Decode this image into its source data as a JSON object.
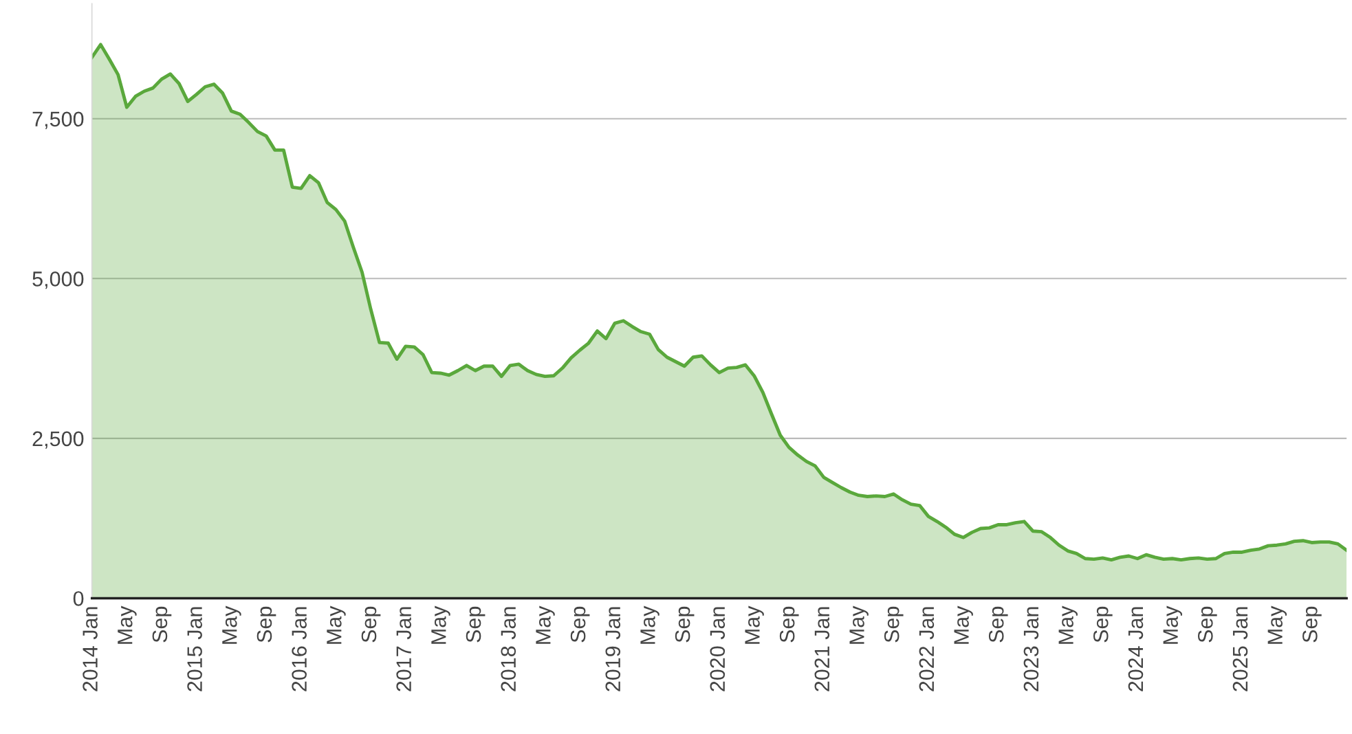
{
  "chart_data": {
    "type": "area",
    "categories": [
      "2014 Jan",
      null,
      null,
      null,
      "May",
      null,
      null,
      null,
      "Sep",
      null,
      null,
      null,
      "2015 Jan",
      null,
      null,
      null,
      "May",
      null,
      null,
      null,
      "Sep",
      null,
      null,
      null,
      "2016 Jan",
      null,
      null,
      null,
      "May",
      null,
      null,
      null,
      "Sep",
      null,
      null,
      null,
      "2017 Jan",
      null,
      null,
      null,
      "May",
      null,
      null,
      null,
      "Sep",
      null,
      null,
      null,
      "2018 Jan",
      null,
      null,
      null,
      "May",
      null,
      null,
      null,
      "Sep",
      null,
      null,
      null,
      "2019 Jan",
      null,
      null,
      null,
      "May",
      null,
      null,
      null,
      "Sep",
      null,
      null,
      null,
      "2020 Jan",
      null,
      null,
      null,
      "May",
      null,
      null,
      null,
      "Sep",
      null,
      null,
      null,
      "2021 Jan",
      null,
      null,
      null,
      "May",
      null,
      null,
      null,
      "Sep",
      null,
      null,
      null,
      "2022 Jan",
      null,
      null,
      null,
      "May",
      null,
      null,
      null,
      "Sep",
      null,
      null,
      null,
      "2023 Jan",
      null,
      null,
      null,
      "May",
      null,
      null,
      null,
      "Sep",
      null,
      null,
      null,
      "2024 Jan",
      null,
      null,
      null,
      "May",
      null,
      null,
      null,
      "Sep",
      null,
      null,
      null,
      "2025 Jan",
      null,
      null,
      null,
      "May",
      null,
      null,
      null,
      "Sep",
      null,
      null,
      null,
      null
    ],
    "series": [
      {
        "color": "#5aa83c",
        "values": [
          8460,
          8660,
          8430,
          8190,
          7680,
          7850,
          7930,
          7980,
          8120,
          8200,
          8050,
          7770,
          7880,
          8000,
          8040,
          7900,
          7620,
          7570,
          7440,
          7300,
          7230,
          7010,
          7010,
          6430,
          6410,
          6610,
          6500,
          6190,
          6080,
          5900,
          5490,
          5100,
          4520,
          4000,
          3990,
          3740,
          3940,
          3930,
          3810,
          3530,
          3520,
          3490,
          3560,
          3640,
          3560,
          3630,
          3630,
          3470,
          3640,
          3660,
          3560,
          3500,
          3470,
          3480,
          3600,
          3760,
          3880,
          3990,
          4180,
          4060,
          4300,
          4340,
          4250,
          4170,
          4130,
          3890,
          3770,
          3700,
          3630,
          3770,
          3790,
          3650,
          3530,
          3600,
          3610,
          3650,
          3480,
          3220,
          2880,
          2550,
          2360,
          2240,
          2140,
          2070,
          1890,
          1810,
          1730,
          1660,
          1610,
          1590,
          1600,
          1590,
          1630,
          1540,
          1470,
          1450,
          1280,
          1200,
          1110,
          1000,
          950,
          1030,
          1090,
          1100,
          1150,
          1150,
          1180,
          1200,
          1050,
          1040,
          950,
          830,
          740,
          700,
          620,
          610,
          630,
          600,
          640,
          660,
          620,
          680,
          640,
          610,
          620,
          600,
          620,
          630,
          610,
          620,
          700,
          720,
          720,
          750,
          770,
          820,
          830,
          850,
          890,
          900,
          870,
          880,
          880,
          850,
          750
        ]
      }
    ],
    "ylim": [
      0,
      9300
    ],
    "yticks": [
      {
        "value": 0,
        "label": "0"
      },
      {
        "value": 2500,
        "label": "2,500"
      },
      {
        "value": 5000,
        "label": "5,000"
      },
      {
        "value": 7500,
        "label": "7,500"
      }
    ],
    "grid": "y"
  }
}
